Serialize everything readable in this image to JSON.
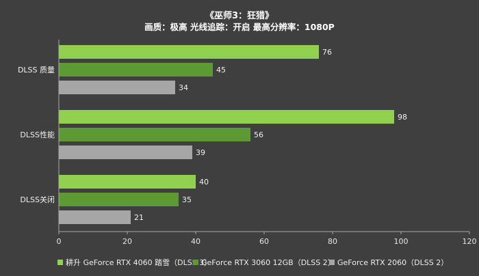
{
  "chart_data": {
    "type": "bar",
    "orientation": "horizontal",
    "title": "《巫师3：狂猎》",
    "subtitle": "画质：极高  光线追踪：开启  最高分辨率：1080P",
    "categories": [
      "DLSS 质量",
      "DLSS性能",
      "DLSS关闭"
    ],
    "series": [
      {
        "name": "耕升 GeForce RTX 4060 踏雪（DLSS 3）",
        "values": [
          76,
          98,
          40
        ],
        "color": "#92d050"
      },
      {
        "name": "GeForce RTX 3060 12GB（DLSS 2）",
        "values": [
          45,
          56,
          35
        ],
        "color": "#5e9a34"
      },
      {
        "name": "GeForce RTX 2060（DLSS 2）",
        "values": [
          34,
          39,
          21
        ],
        "color": "#a6a6a6"
      }
    ],
    "xlim": [
      0,
      120
    ],
    "xticks": [
      0,
      20,
      40,
      60,
      80,
      100,
      120
    ],
    "grid": false,
    "legend_position": "bottom"
  }
}
